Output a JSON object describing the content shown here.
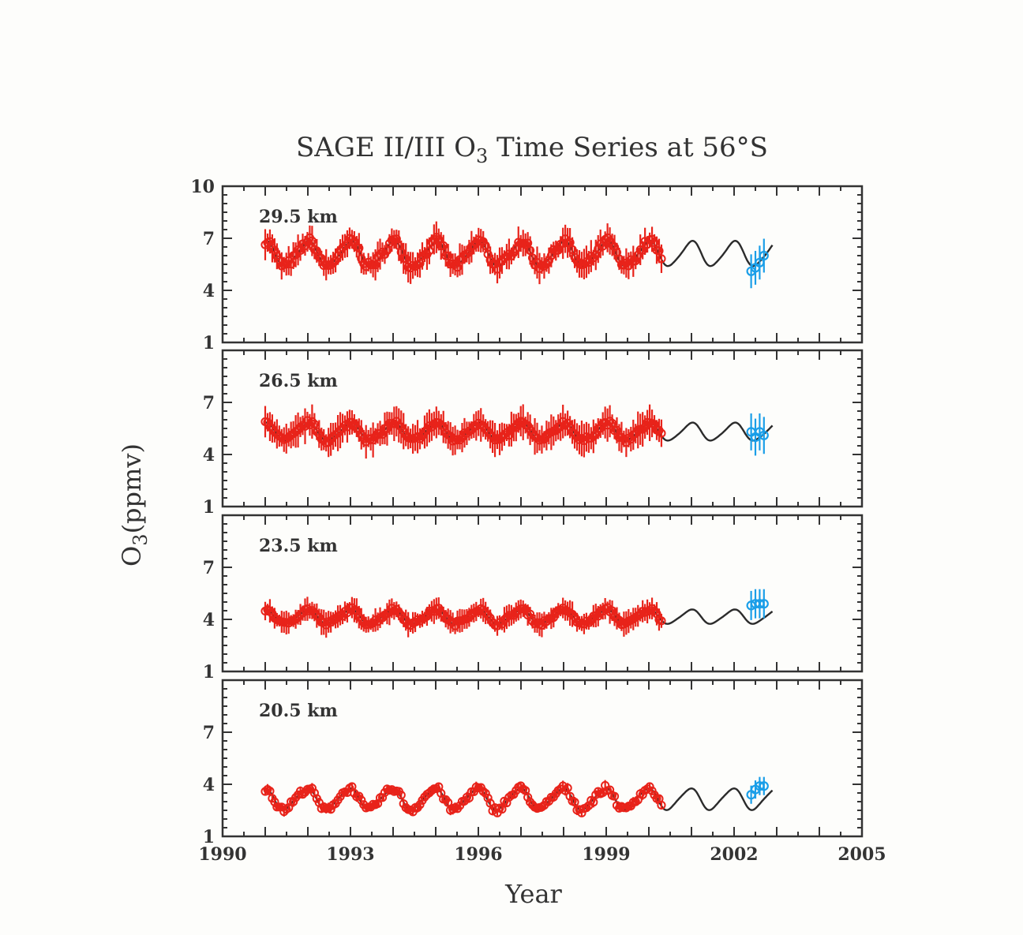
{
  "chart_data": {
    "type": "scatter",
    "title_main": "SAGE II/III O",
    "title_sub": "3",
    "title_rest": " Time Series at 56°S",
    "xlabel": "Year",
    "ylabel_main": "O",
    "ylabel_sub": "3",
    "ylabel_rest": "(ppmv)",
    "xlim": [
      1990,
      2005
    ],
    "xticks": [
      "1990",
      "1993",
      "1996",
      "1999",
      "2002",
      "2005"
    ],
    "ylim": [
      1,
      10
    ],
    "yticks_top": [
      "1",
      "4",
      "7",
      "10"
    ],
    "yticks": [
      "1",
      "4",
      "7"
    ],
    "colors": {
      "sage2": "#e8231a",
      "sage3": "#1a9ee8",
      "fit": "#2b2b2b"
    },
    "panels": [
      {
        "label": "29.5 km",
        "mean": 6.1,
        "amp": 0.7,
        "phase": 1.62,
        "err": 0.75,
        "sage3": [
          {
            "x": 2002.4,
            "y": 5.1
          },
          {
            "x": 2002.5,
            "y": 5.3
          },
          {
            "x": 2002.6,
            "y": 5.6
          },
          {
            "x": 2002.7,
            "y": 6.0
          }
        ]
      },
      {
        "label": "26.5 km",
        "mean": 5.3,
        "amp": 0.5,
        "phase": 1.62,
        "err": 0.85,
        "sage3": [
          {
            "x": 2002.4,
            "y": 5.3
          },
          {
            "x": 2002.5,
            "y": 5.0
          },
          {
            "x": 2002.6,
            "y": 5.3
          },
          {
            "x": 2002.7,
            "y": 5.1
          }
        ]
      },
      {
        "label": "23.5 km",
        "mean": 4.15,
        "amp": 0.4,
        "phase": 1.7,
        "err": 0.6,
        "sage3": [
          {
            "x": 2002.4,
            "y": 4.8
          },
          {
            "x": 2002.5,
            "y": 4.9
          },
          {
            "x": 2002.6,
            "y": 4.9
          },
          {
            "x": 2002.7,
            "y": 4.9
          }
        ]
      },
      {
        "label": "20.5 km",
        "mean": 3.15,
        "amp": 0.6,
        "phase": 1.85,
        "err": 0.25,
        "sage3": [
          {
            "x": 2002.4,
            "y": 3.4
          },
          {
            "x": 2002.5,
            "y": 3.7
          },
          {
            "x": 2002.6,
            "y": 3.9
          },
          {
            "x": 2002.7,
            "y": 3.9
          }
        ]
      }
    ]
  }
}
